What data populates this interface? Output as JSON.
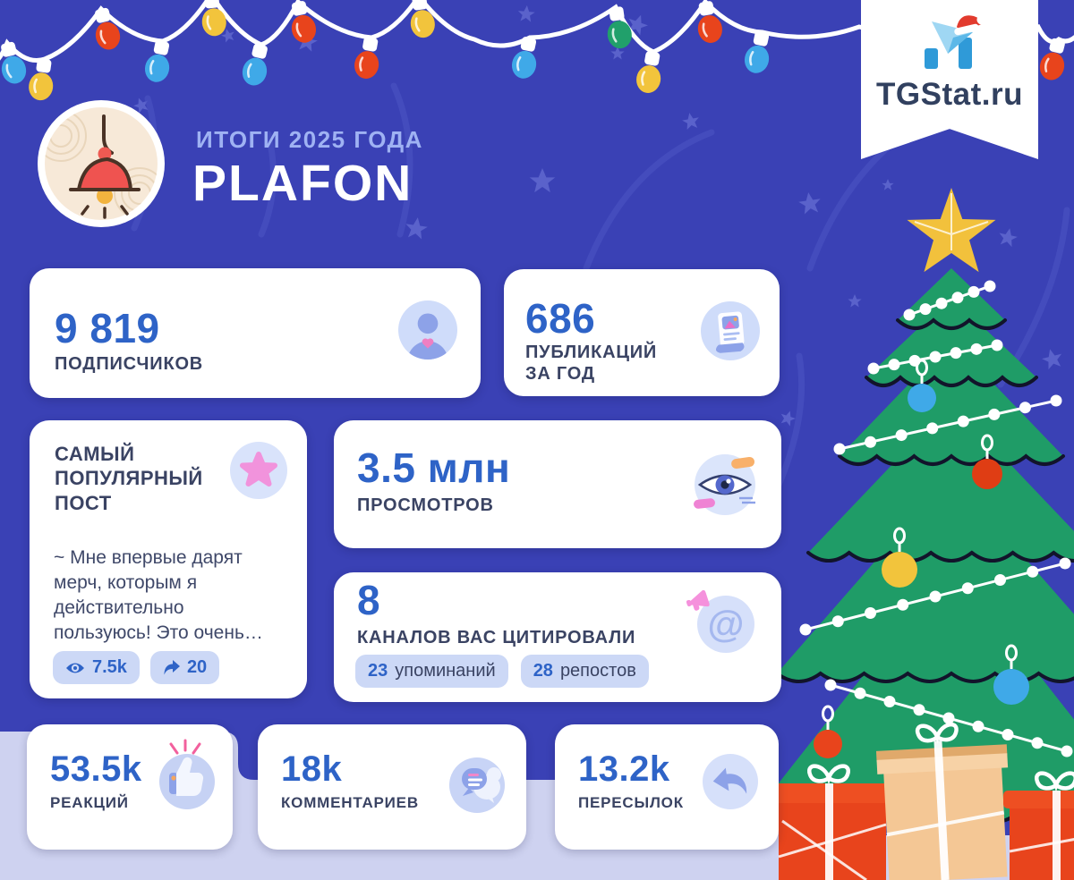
{
  "brand": {
    "logo_text": "TGStat.ru"
  },
  "header": {
    "subtitle": "ИТОГИ 2025 ГОДА",
    "title": "PLAFON"
  },
  "cards": {
    "subscribers": {
      "value": "9 819",
      "label": "ПОДПИСЧИКОВ"
    },
    "publications": {
      "value": "686",
      "label_line1": "ПУБЛИКАЦИЙ",
      "label_line2": "ЗА ГОД"
    },
    "top_post": {
      "heading": "САМЫЙ ПОПУЛЯРНЫЙ ПОСТ",
      "excerpt": "~ Мне впервые дарят мерч, которым я действительно пользуюсь! Это очень…",
      "views": "7.5k",
      "forwards": "20"
    },
    "views": {
      "value": "3.5 млн",
      "label": "ПРОСМОТРОВ"
    },
    "citations": {
      "value": "8",
      "label": "КАНАЛОВ ВАС ЦИТИРОВАЛИ",
      "mentions_value": "23",
      "mentions_label": "упоминаний",
      "reposts_value": "28",
      "reposts_label": "репостов"
    },
    "reactions": {
      "value": "53.5k",
      "label": "РЕАКЦИЙ"
    },
    "comments": {
      "value": "18k",
      "label": "КОММЕНТАРИЕВ"
    },
    "forwards": {
      "value": "13.2k",
      "label": "ПЕРЕСЫЛОК"
    }
  },
  "colors": {
    "background": "#3a41b5",
    "card": "#ffffff",
    "accent_blue": "#2e63c7",
    "navy": "#3a4363",
    "pill": "#ccd8f6",
    "snow": "#ced2f0",
    "tree_green": "#1f9c67",
    "gold_star": "#f2c13c",
    "bulb_red": "#e8441c",
    "bulb_blue": "#3fa9e8",
    "bulb_yellow": "#f2c43c"
  }
}
